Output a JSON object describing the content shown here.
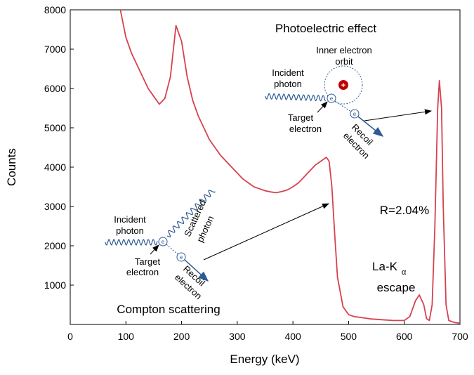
{
  "chart_data": {
    "type": "line",
    "xlabel": "Energy (keV)",
    "ylabel": "Counts",
    "xlim": [
      0,
      700
    ],
    "ylim": [
      0,
      8000
    ],
    "xticks": [
      0,
      100,
      200,
      300,
      400,
      500,
      600,
      700
    ],
    "yticks": [
      1000,
      2000,
      3000,
      4000,
      5000,
      6000,
      7000,
      8000
    ],
    "color": "#d6424f",
    "x": [
      90,
      100,
      110,
      120,
      130,
      140,
      150,
      160,
      170,
      180,
      190,
      200,
      210,
      220,
      230,
      240,
      250,
      260,
      270,
      280,
      290,
      300,
      310,
      320,
      330,
      340,
      350,
      360,
      370,
      380,
      390,
      400,
      410,
      420,
      430,
      440,
      450,
      460,
      465,
      470,
      475,
      480,
      490,
      500,
      510,
      520,
      530,
      540,
      550,
      560,
      570,
      580,
      590,
      600,
      610,
      620,
      627,
      635,
      640,
      645,
      650,
      655,
      660,
      663,
      667,
      670,
      675,
      680,
      690,
      700
    ],
    "values": [
      8000,
      7300,
      6900,
      6600,
      6300,
      6000,
      5800,
      5600,
      5750,
      6300,
      7600,
      7200,
      6300,
      5700,
      5300,
      5000,
      4700,
      4500,
      4300,
      4150,
      4000,
      3850,
      3700,
      3600,
      3500,
      3450,
      3400,
      3370,
      3350,
      3380,
      3420,
      3500,
      3600,
      3750,
      3900,
      4050,
      4150,
      4250,
      4150,
      3500,
      2300,
      1200,
      450,
      250,
      200,
      180,
      160,
      140,
      130,
      120,
      110,
      100,
      100,
      100,
      200,
      600,
      750,
      500,
      150,
      100,
      500,
      2500,
      5500,
      6200,
      5500,
      3000,
      500,
      100,
      50,
      30
    ],
    "annotations": {
      "photoelectric": {
        "title": "Photoelectric effect",
        "orbit": [
          "Inner electron",
          "orbit"
        ],
        "nucleus": "+",
        "incident": [
          "Incident",
          "photon"
        ],
        "target": [
          "Target",
          "electron"
        ],
        "recoil": [
          "Recoil",
          "electron"
        ],
        "electron_symbol": "e"
      },
      "compton": {
        "title": "Compton scattering",
        "incident": [
          "Incident",
          "photon"
        ],
        "scattered": [
          "Scattered",
          "photon"
        ],
        "target": [
          "Target",
          "electron"
        ],
        "recoil": [
          "Recoil",
          "electron"
        ],
        "electron_symbol": "e"
      },
      "resolution": "R=2.04%",
      "escape": {
        "label": "La-K",
        "subscript": "α",
        "text": "escape"
      }
    }
  }
}
